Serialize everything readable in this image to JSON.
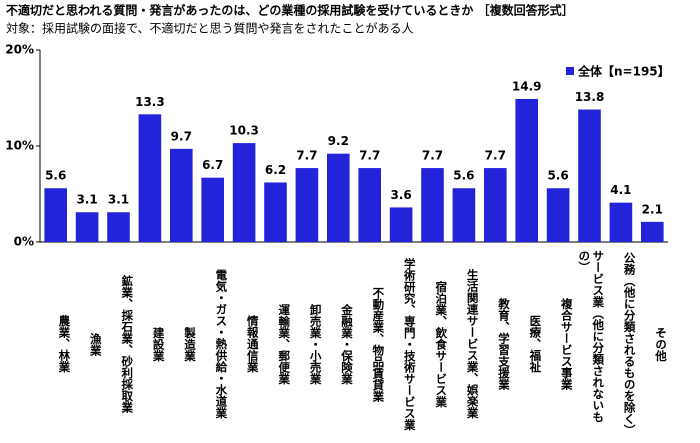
{
  "chart_data": {
    "type": "bar",
    "title": "不適切だと思われる質問・発言があったのは、どの業種の採用試験を受けているときか ［複数回答形式］",
    "subtitle": "対象：採用試験の面接で、不適切だと思う質問や発言をされたことがある人",
    "categories": [
      "農業、林業",
      "漁業",
      "鉱業、採石業、砂利採取業",
      "建設業",
      "製造業",
      "電気・ガス・熱供給・水道業",
      "情報通信業",
      "運輸業、郵便業",
      "卸売業・小売業",
      "金融業・保険業",
      "不動産業、物品賃貸業",
      "学術研究、専門・技術サービス業",
      "宿泊業、飲食サービス業",
      "生活関連サービス業、娯楽業",
      "教育、学習支援業",
      "医療、福祉",
      "複合サービス事業",
      "サービス業（他に分類されないもの）",
      "公務（他に分類されるものを除く）",
      "その他"
    ],
    "series": [
      {
        "name": "全体【n=195】",
        "color": "#2323d9",
        "values": [
          5.6,
          3.1,
          3.1,
          13.3,
          9.7,
          6.7,
          10.3,
          6.2,
          7.7,
          9.2,
          7.7,
          3.6,
          7.7,
          5.6,
          7.7,
          14.9,
          5.6,
          13.8,
          4.1,
          2.1
        ]
      }
    ],
    "ylim": [
      0,
      20
    ],
    "yticks": [
      {
        "value": 0,
        "label": "0%"
      },
      {
        "value": 10,
        "label": "10%"
      },
      {
        "value": 20,
        "label": "20%"
      }
    ],
    "legend": "top-right"
  }
}
